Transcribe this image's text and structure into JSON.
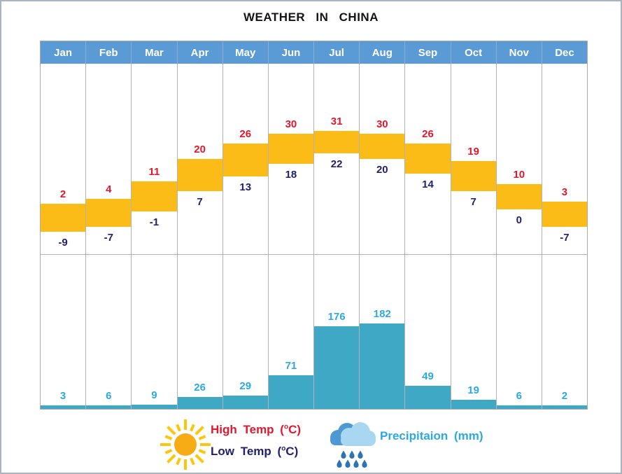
{
  "title": "WEATHER IN CHINA",
  "chart_data": {
    "type": "bar",
    "title": "WEATHER IN CHINA",
    "categories": [
      "Jan",
      "Feb",
      "Mar",
      "Apr",
      "May",
      "Jun",
      "Jul",
      "Aug",
      "Sep",
      "Oct",
      "Nov",
      "Dec"
    ],
    "series": [
      {
        "name": "High Temp (°C)",
        "values": [
          2,
          4,
          11,
          20,
          26,
          30,
          31,
          30,
          26,
          19,
          10,
          3
        ]
      },
      {
        "name": "Low Temp (°C)",
        "values": [
          -9,
          -7,
          -1,
          7,
          13,
          18,
          22,
          20,
          14,
          7,
          0,
          -7
        ]
      },
      {
        "name": "Precipitaion (mm)",
        "values": [
          3,
          6,
          9,
          26,
          29,
          71,
          176,
          182,
          49,
          19,
          6,
          2
        ]
      }
    ],
    "temp_axis_range": [
      -9,
      31
    ],
    "precip_axis_range": [
      0,
      182
    ],
    "grid": true,
    "legend_position": "bottom"
  },
  "legend": {
    "high_prefix": "High Temp (",
    "high_sup": "o",
    "high_suffix": "C)",
    "low_prefix": "Low Temp (",
    "low_sup": "o",
    "low_suffix": "C)",
    "precip_label": "Precipitaion (mm)",
    "sun_icon": "sun-icon",
    "cloud_icon": "rain-cloud-icon"
  },
  "colors": {
    "header_blue": "#5B9BD5",
    "temp_bar": "#FBBC17",
    "high_label": "#E3172C",
    "low_label": "#212170",
    "precip_bar": "#3FA8C4",
    "precip_label": "#2BA9E0",
    "grid": "#B3B3B3",
    "sun_core": "#F7AC15",
    "sun_rays": "#FDC60E",
    "cloud_back": "#4F99D3",
    "cloud_front": "#A9D7F2",
    "rain_drop": "#2E74B5"
  }
}
